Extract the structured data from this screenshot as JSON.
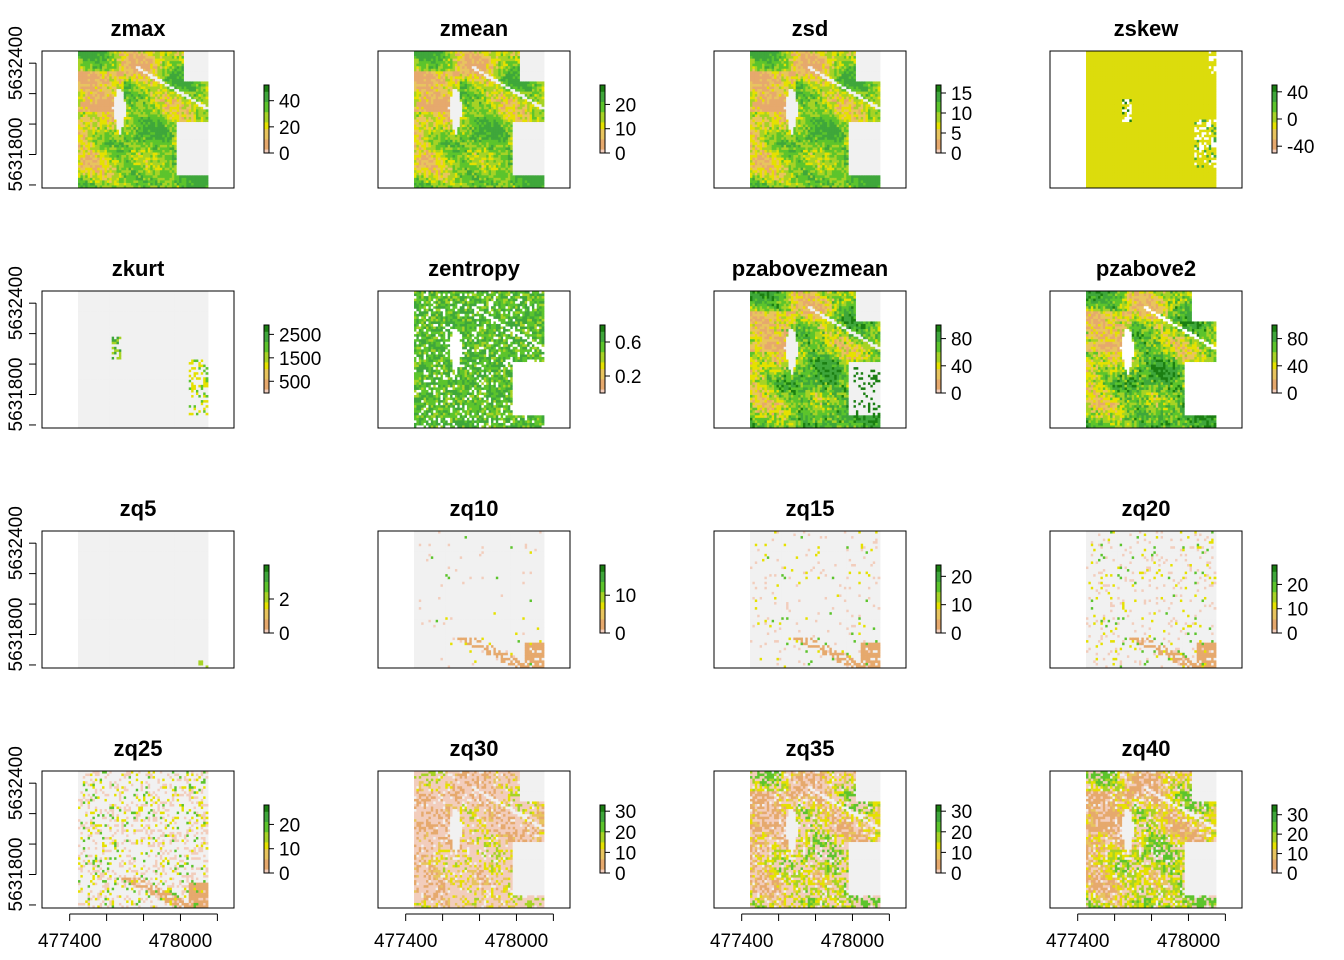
{
  "chart_data": {
    "type": "heatmap",
    "layout": "4x4 grid of raster map panels with individual color legends",
    "x_axis": {
      "tick_labels": [
        "477400",
        "478000"
      ],
      "shown_on_bottom_row": true,
      "range": [
        477250,
        478290
      ]
    },
    "y_axis": {
      "tick_labels": [
        "5631800",
        "5632400"
      ],
      "shown_on_left_column": true,
      "range": [
        5631580,
        5632480
      ]
    },
    "raster_extent": {
      "x": [
        477430,
        478150
      ],
      "y": [
        5631580,
        5632480
      ]
    },
    "colormap": [
      "#f1f1f1",
      "#f2cdbc",
      "#e6a96d",
      "#e8c45e",
      "#e5e100",
      "#a6d325",
      "#5cc42c",
      "#3fa73b",
      "#1b7f12"
    ],
    "panels": [
      {
        "title": "zmax",
        "legend_ticks": [
          "40",
          "20",
          "0"
        ],
        "legend_values": [
          40,
          20,
          0
        ],
        "range": [
          0,
          52
        ],
        "pattern": "canopy"
      },
      {
        "title": "zmean",
        "legend_ticks": [
          "20",
          "10",
          "0"
        ],
        "legend_values": [
          20,
          10,
          0
        ],
        "range": [
          0,
          28
        ],
        "pattern": "canopy"
      },
      {
        "title": "zsd",
        "legend_ticks": [
          "15",
          "10",
          "5",
          "0"
        ],
        "legend_values": [
          15,
          10,
          5,
          0
        ],
        "range": [
          0,
          17
        ],
        "pattern": "canopy"
      },
      {
        "title": "zskew",
        "legend_ticks": [
          "40",
          "0",
          "-40"
        ],
        "legend_values": [
          40,
          0,
          -40
        ],
        "range": [
          -50,
          50
        ],
        "pattern": "skew"
      },
      {
        "title": "zkurt",
        "legend_ticks": [
          "2500",
          "1500",
          "500"
        ],
        "legend_values": [
          2500,
          1500,
          500
        ],
        "range": [
          0,
          2900
        ],
        "pattern": "kurt"
      },
      {
        "title": "zentropy",
        "legend_ticks": [
          "0.6",
          "0.2"
        ],
        "legend_values": [
          0.6,
          0.2
        ],
        "range": [
          0,
          0.8
        ],
        "pattern": "entropy"
      },
      {
        "title": "pzabovezmean",
        "legend_ticks": [
          "80",
          "40",
          "0"
        ],
        "legend_values": [
          80,
          40,
          0
        ],
        "range": [
          0,
          100
        ],
        "pattern": "pzmean"
      },
      {
        "title": "pzabove2",
        "legend_ticks": [
          "80",
          "40",
          "0"
        ],
        "legend_values": [
          80,
          40,
          0
        ],
        "range": [
          0,
          100
        ],
        "pattern": "pz2"
      },
      {
        "title": "zq5",
        "legend_ticks": [
          "2",
          "0"
        ],
        "legend_values": [
          2,
          0
        ],
        "range": [
          0,
          4
        ],
        "pattern": "q5"
      },
      {
        "title": "zq10",
        "legend_ticks": [
          "10",
          "0"
        ],
        "legend_values": [
          10,
          0
        ],
        "range": [
          0,
          18
        ],
        "pattern": "q10"
      },
      {
        "title": "zq15",
        "legend_ticks": [
          "20",
          "10",
          "0"
        ],
        "legend_values": [
          20,
          10,
          0
        ],
        "range": [
          0,
          24
        ],
        "pattern": "q15"
      },
      {
        "title": "zq20",
        "legend_ticks": [
          "20",
          "10",
          "0"
        ],
        "legend_values": [
          20,
          10,
          0
        ],
        "range": [
          0,
          28
        ],
        "pattern": "q20"
      },
      {
        "title": "zq25",
        "legend_ticks": [
          "20",
          "10",
          "0"
        ],
        "legend_values": [
          20,
          10,
          0
        ],
        "range": [
          0,
          28
        ],
        "pattern": "q25"
      },
      {
        "title": "zq30",
        "legend_ticks": [
          "30",
          "20",
          "10",
          "0"
        ],
        "legend_values": [
          30,
          20,
          10,
          0
        ],
        "range": [
          0,
          33
        ],
        "pattern": "q30"
      },
      {
        "title": "zq35",
        "legend_ticks": [
          "30",
          "20",
          "10",
          "0"
        ],
        "legend_values": [
          30,
          20,
          10,
          0
        ],
        "range": [
          0,
          33
        ],
        "pattern": "q35"
      },
      {
        "title": "zq40",
        "legend_ticks": [
          "30",
          "20",
          "10",
          "0"
        ],
        "legend_values": [
          30,
          20,
          10,
          0
        ],
        "range": [
          0,
          35
        ],
        "pattern": "q40"
      }
    ]
  }
}
